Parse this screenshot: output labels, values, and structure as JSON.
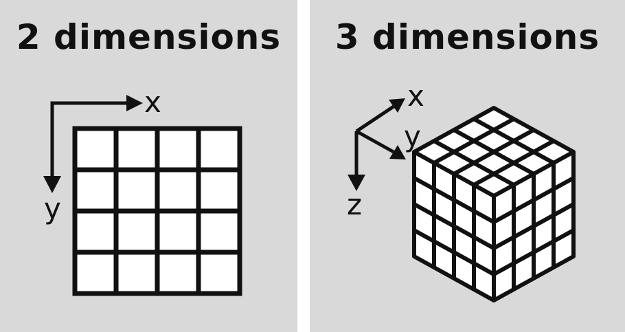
{
  "left_panel": {
    "title": "2 dimensions",
    "axes": {
      "x": "x",
      "y": "y"
    }
  },
  "right_panel": {
    "title": "3 dimensions",
    "axes": {
      "x": "x",
      "y": "y",
      "z": "z"
    }
  },
  "colors": {
    "panel_background": "#d9d9d9",
    "gap": "#ffffff",
    "stroke": "#111111",
    "cell_fill": "#ffffff"
  }
}
